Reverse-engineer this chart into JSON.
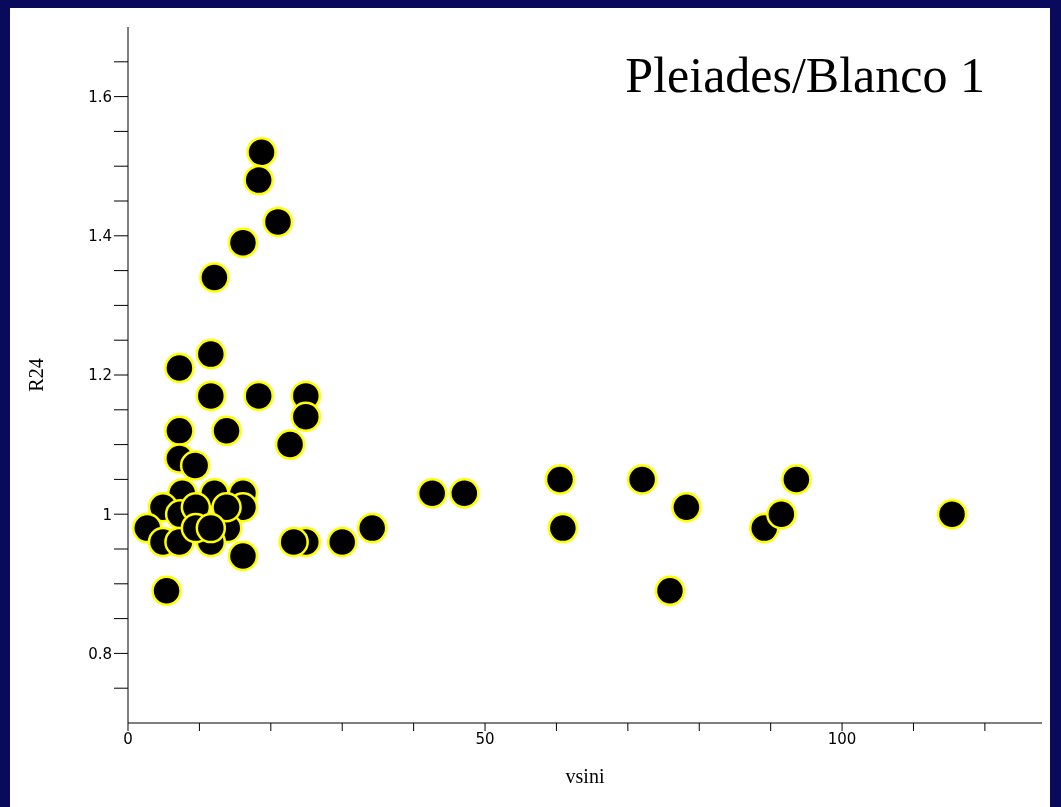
{
  "chart_data": {
    "type": "scatter",
    "title": "Pleiades/Blanco 1",
    "xlabel": "vsini",
    "ylabel": "R24",
    "x": [
      18.7,
      18.3,
      21.0,
      16.1,
      12.1,
      11.6,
      7.2,
      11.6,
      18.3,
      24.9,
      24.9,
      7.2,
      13.8,
      22.7,
      7.2,
      9.4,
      7.6,
      12.1,
      16.1,
      4.9,
      7.3,
      9.5,
      16.1,
      2.7,
      13.9,
      4.9,
      7.2,
      11.6,
      16.1,
      24.9,
      5.4,
      30.0,
      34.2,
      42.6,
      47.1,
      60.5,
      60.9,
      72.0,
      78.2,
      75.9,
      89.1,
      91.5,
      93.6,
      115.4,
      13.8,
      9.5,
      11.6,
      23.2
    ],
    "series": [
      {
        "color": "#000000",
        "values": [
          1.52,
          1.48,
          1.42,
          1.39,
          1.34,
          1.23,
          1.21,
          1.17,
          1.17,
          1.17,
          1.14,
          1.12,
          1.12,
          1.1,
          1.08,
          1.07,
          1.03,
          1.03,
          1.03,
          1.01,
          1.0,
          1.01,
          1.01,
          0.98,
          0.98,
          0.96,
          0.96,
          0.96,
          0.94,
          0.96,
          0.89,
          0.96,
          0.98,
          1.03,
          1.03,
          1.05,
          0.98,
          1.05,
          1.01,
          0.89,
          0.98,
          1.0,
          1.05,
          1.0,
          1.01,
          0.98,
          0.98,
          0.96
        ]
      }
    ],
    "xlim": [
      0,
      128
    ],
    "xticks": [
      0,
      {
        "value": 10,
        "label": null
      },
      {
        "value": 20,
        "label": null
      },
      {
        "value": 30,
        "label": null
      },
      {
        "value": 40,
        "label": null
      },
      50,
      {
        "value": 60,
        "label": null
      },
      {
        "value": 70,
        "label": null
      },
      {
        "value": 80,
        "label": null
      },
      {
        "value": 90,
        "label": null
      },
      100,
      {
        "value": 110,
        "label": null
      },
      {
        "value": 120,
        "label": null
      }
    ],
    "ylim": [
      0.7,
      1.7
    ],
    "yticks": [
      {
        "value": 0.75,
        "label": null
      },
      {
        "value": 0.8,
        "label": "0.8"
      },
      {
        "value": 0.85,
        "label": null
      },
      {
        "value": 0.9,
        "label": null
      },
      {
        "value": 0.95,
        "label": null
      },
      1,
      {
        "value": 1.05,
        "label": null
      },
      {
        "value": 1.1,
        "label": null
      },
      {
        "value": 1.15,
        "label": null
      },
      {
        "value": 1.2,
        "label": "1.2"
      },
      {
        "value": 1.25,
        "label": null
      },
      {
        "value": 1.3,
        "label": null
      },
      {
        "value": 1.35,
        "label": null
      },
      {
        "value": 1.4,
        "label": "1.4"
      },
      {
        "value": 1.45,
        "label": null
      },
      {
        "value": 1.5,
        "label": null
      },
      {
        "value": 1.55,
        "label": null
      },
      {
        "value": 1.6,
        "label": "1.6"
      },
      {
        "value": 1.65,
        "label": null
      }
    ],
    "marker": "circle",
    "grid": false,
    "legend": false
  }
}
